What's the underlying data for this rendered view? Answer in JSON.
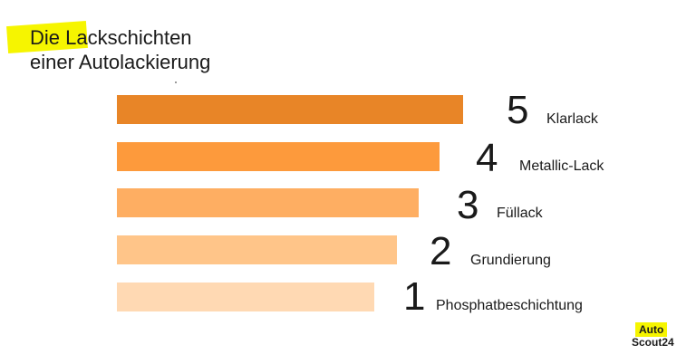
{
  "title": {
    "line1": "Die Lackschichten",
    "line2": "einer Autolackierung"
  },
  "layers": [
    {
      "number": "5",
      "label": "Klarlack",
      "color": "#e88527"
    },
    {
      "number": "4",
      "label": "Metallic-Lack",
      "color": "#fd9a3c"
    },
    {
      "number": "3",
      "label": "Füllack",
      "color": "#feae62"
    },
    {
      "number": "2",
      "label": "Grundierung",
      "color": "#ffc589"
    },
    {
      "number": "1",
      "label": "Phosphatbeschichtung",
      "color": "#ffd9b3"
    }
  ],
  "logo": {
    "top": "Auto",
    "bottom": "Scout24",
    "accent": "#f6f500"
  }
}
